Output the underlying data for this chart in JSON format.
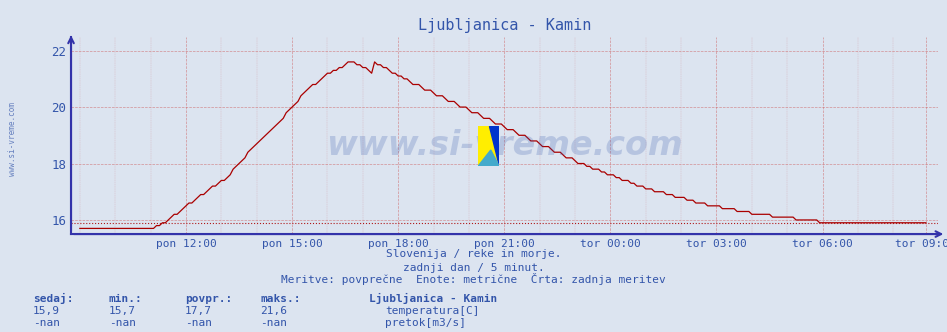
{
  "title": "Ljubljanica - Kamin",
  "bg_color": "#dce4f0",
  "plot_bg_color": "#dce4f0",
  "grid_color": "#cc6666",
  "line_color_temp": "#aa0000",
  "axis_color": "#3333aa",
  "text_color": "#3355aa",
  "watermark_color": "#3355aa",
  "ylim": [
    15.5,
    22.5
  ],
  "yticks": [
    16,
    18,
    20,
    22
  ],
  "subtitle1": "Slovenija / reke in morje.",
  "subtitle2": "zadnji dan / 5 minut.",
  "subtitle3": "Meritve: povprečne  Enote: metrične  Črta: zadnja meritev",
  "footer_labels": [
    "sedaj:",
    "min.:",
    "povpr.:",
    "maks.:"
  ],
  "footer_values_temp": [
    "15,9",
    "15,7",
    "17,7",
    "21,6"
  ],
  "footer_values_pretok": [
    "-nan",
    "-nan",
    "-nan",
    "-nan"
  ],
  "legend_title": "Ljubljanica - Kamin",
  "legend_items": [
    {
      "label": "temperatura[C]",
      "color": "#cc0000"
    },
    {
      "label": "pretok[m3/s]",
      "color": "#008800"
    }
  ],
  "num_points": 288,
  "x_tick_labels": [
    "pon 12:00",
    "pon 15:00",
    "pon 18:00",
    "pon 21:00",
    "tor 00:00",
    "tor 03:00",
    "tor 06:00",
    "tor 09:00"
  ],
  "x_tick_positions": [
    36,
    72,
    108,
    144,
    180,
    216,
    252,
    287
  ],
  "last_value": 15.9,
  "peak_value": 21.6
}
